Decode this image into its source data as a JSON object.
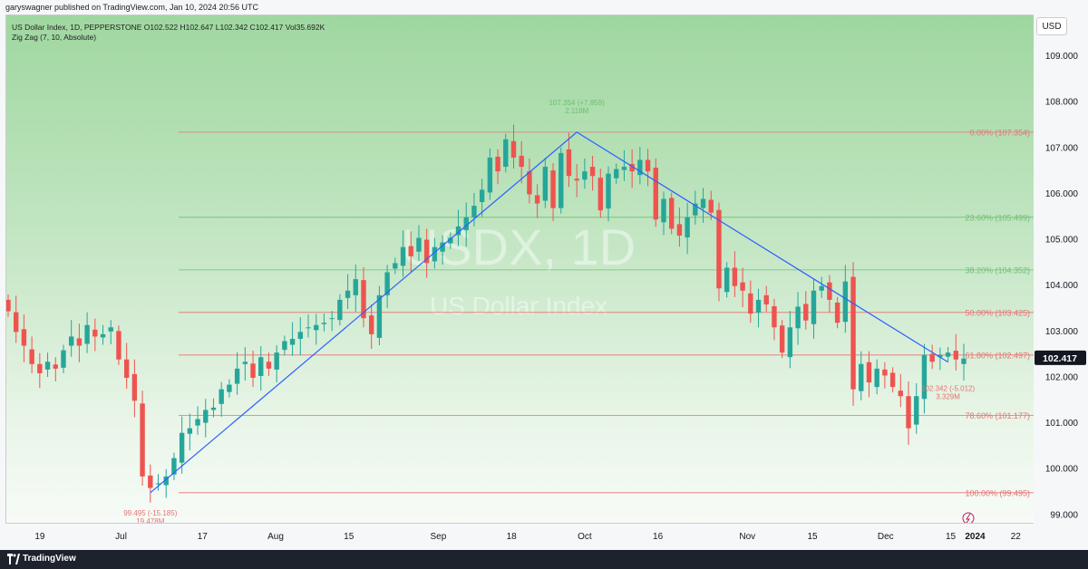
{
  "header": {
    "publisher_line": "garyswagner published on TradingView.com, Jan 10, 2024 20:56 UTC"
  },
  "legend": {
    "ohlc_line": "US Dollar Index, 1D, PEPPERSTONE  O102.522  H102.647  L102.342  C102.417  Vol35.692K",
    "indicator_line": "Zig Zag (7, 10, Absolute)"
  },
  "currency_button": "USD",
  "footer": {
    "brand": "TradingView"
  },
  "watermark": {
    "symbol": "USDX, 1D",
    "name": "US Dollar Index"
  },
  "colors": {
    "up": "#26a69a",
    "down": "#ef5350",
    "zigzag": "#2962ff",
    "fib_red": "#e57373",
    "fib_green": "#6fbf73",
    "price_tag": "#131722"
  },
  "chart_data": {
    "type": "candlestick",
    "symbol": "US Dollar Index",
    "timeframe": "1D",
    "exchange": "PEPPERSTONE",
    "ylim": [
      98.8,
      109.9
    ],
    "y_ticks": [
      "109.000",
      "108.000",
      "107.000",
      "106.000",
      "105.000",
      "104.000",
      "103.000",
      "102.000",
      "101.000",
      "100.000",
      "99.000"
    ],
    "x_ticks": [
      "19",
      "Jul",
      "17",
      "Aug",
      "15",
      "Sep",
      "18",
      "Oct",
      "16",
      "Nov",
      "15",
      "Dec",
      "15",
      "2024",
      "22"
    ],
    "last_price": "102.417",
    "close_series": [
      103.45,
      103.0,
      102.7,
      102.3,
      102.1,
      102.35,
      102.2,
      102.6,
      102.9,
      102.7,
      103.15,
      102.9,
      102.95,
      103.1,
      102.4,
      102.0,
      101.5,
      99.85,
      99.6,
      99.7,
      99.85,
      100.25,
      100.8,
      100.9,
      101.1,
      101.3,
      101.35,
      101.75,
      101.85,
      102.2,
      102.35,
      102.0,
      102.45,
      102.2,
      102.55,
      102.8,
      102.85,
      103.0,
      103.1,
      103.15,
      103.2,
      103.3,
      103.7,
      103.9,
      104.15,
      103.3,
      102.95,
      103.8,
      104.3,
      104.5,
      104.85,
      104.65,
      105.05,
      104.5,
      104.85,
      104.95,
      105.05,
      105.3,
      105.5,
      105.75,
      106.1,
      106.8,
      106.5,
      107.2,
      106.8,
      106.6,
      106.0,
      105.8,
      106.6,
      105.7,
      106.9,
      106.4,
      106.3,
      106.5,
      106.4,
      105.65,
      106.45,
      106.55,
      106.6,
      106.5,
      106.75,
      106.5,
      105.45,
      105.9,
      105.25,
      105.1,
      105.5,
      105.8,
      105.9,
      105.6,
      103.95,
      104.4,
      104.0,
      103.9,
      103.4,
      103.7,
      103.6,
      103.1,
      102.55,
      103.1,
      103.55,
      103.25,
      103.9,
      104.0,
      103.7,
      103.2,
      104.1,
      101.75,
      102.3,
      101.9,
      102.2,
      102.05,
      101.8,
      101.6,
      100.9,
      101.6,
      102.5,
      102.35,
      102.5,
      102.55,
      102.4,
      102.42
    ],
    "zigzag": [
      {
        "date": "Jul 17",
        "price": 99.495
      },
      {
        "date": "Oct 3",
        "price": 107.354
      },
      {
        "date": "Jan 10",
        "price": 102.342
      }
    ],
    "pivot_labels": [
      {
        "text": "107.354 (+7.859)",
        "sub": "2.118M"
      },
      {
        "text": "99.495 (-15.185)",
        "sub": "19.478M"
      },
      {
        "text": "102.342 (-5.012)",
        "sub": "3.329M"
      }
    ],
    "fib_levels": [
      {
        "label": "0.00% (107.354)",
        "price": 107.354,
        "color": "red"
      },
      {
        "label": "23.60% (105.499)",
        "price": 105.499,
        "color": "green"
      },
      {
        "label": "38.20% (104.352)",
        "price": 104.352,
        "color": "green"
      },
      {
        "label": "50.00% (103.425)",
        "price": 103.425,
        "color": "red"
      },
      {
        "label": "61.80% (102.497)",
        "price": 102.497,
        "color": "red"
      },
      {
        "label": "78.60% (101.177)",
        "price": 101.177,
        "color": "red"
      },
      {
        "label": "100.00% (99.495)",
        "price": 99.495,
        "color": "red"
      }
    ]
  }
}
